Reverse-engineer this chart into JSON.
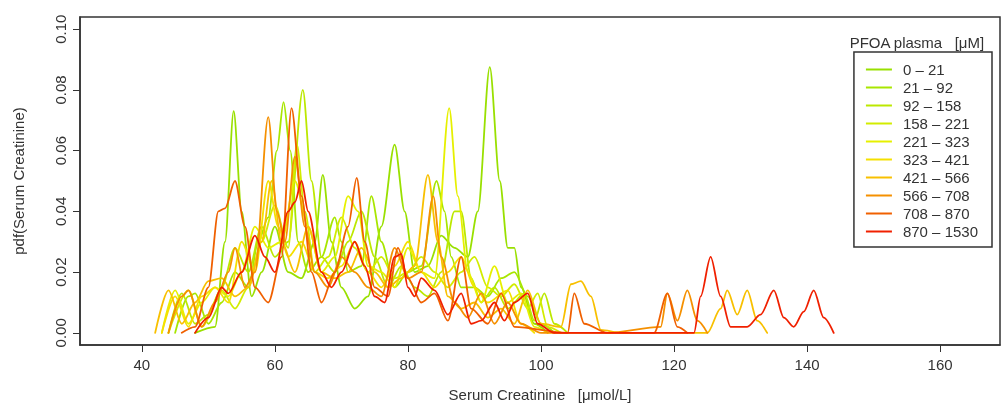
{
  "chart_data": {
    "type": "line",
    "xlabel": "Serum Creatinine   [μmol/L]",
    "ylabel": "pdf(Serum Creatinine)",
    "legend_title": "PFOA plasma   [μM]",
    "legend": "top right",
    "grid": false,
    "marker": "none",
    "line_style": "solid",
    "xlim": [
      30.7,
      169
    ],
    "xticks": [
      40,
      60,
      80,
      100,
      120,
      140,
      160
    ],
    "ylim": [
      -0.004,
      0.104
    ],
    "yticks": [
      {
        "value": 0,
        "label": "0.00"
      },
      {
        "value": 0.02,
        "label": "0.02"
      },
      {
        "value": 0.04,
        "label": "0.04"
      },
      {
        "value": 0.06,
        "label": "0.06"
      },
      {
        "value": 0.08,
        "label": "0.08"
      },
      {
        "value": 0.1,
        "label": "0.10"
      }
    ],
    "series": [
      {
        "name": "0 – 21",
        "color": "#99e000",
        "x": [
          48,
          51,
          52.5,
          53.8,
          55,
          56.5,
          58,
          60,
          62,
          64,
          66,
          67.2,
          68.5,
          70,
          72,
          74,
          76,
          78,
          79.5,
          81,
          83,
          85,
          87,
          89,
          90.5,
          92.3,
          93.8,
          95,
          96,
          97,
          99,
          101
        ],
        "values": [
          0,
          0.002,
          0.03,
          0.073,
          0.04,
          0.012,
          0.02,
          0.035,
          0.02,
          0.018,
          0.03,
          0.052,
          0.03,
          0.015,
          0.008,
          0.012,
          0.035,
          0.062,
          0.04,
          0.02,
          0.022,
          0.032,
          0.028,
          0.025,
          0.04,
          0.0875,
          0.05,
          0.028,
          0.028,
          0.015,
          0.003,
          0
        ]
      },
      {
        "name": "21 – 92",
        "color": "#a8e600",
        "x": [
          45,
          47,
          48,
          50,
          52,
          54,
          56,
          57.5,
          59,
          60.3,
          61.3,
          62.3,
          63.5,
          65,
          67,
          69,
          70,
          71,
          73,
          74.5,
          76,
          78,
          80,
          82,
          84.3,
          85.5,
          86.5,
          88,
          90,
          92,
          94,
          96,
          98,
          100,
          102
        ],
        "values": [
          0,
          0.012,
          0.013,
          0.003,
          0.01,
          0.02,
          0.015,
          0.03,
          0.038,
          0.06,
          0.076,
          0.06,
          0.03,
          0.02,
          0.025,
          0.038,
          0.03,
          0.02,
          0.022,
          0.045,
          0.03,
          0.015,
          0.02,
          0.022,
          0.05,
          0.04,
          0.025,
          0.015,
          0.015,
          0.012,
          0.018,
          0.02,
          0.012,
          0.003,
          0
        ]
      },
      {
        "name": "92 – 158",
        "color": "#bce800",
        "x": [
          44,
          46,
          48,
          50,
          52,
          54,
          56,
          58,
          60,
          62,
          64.2,
          65.5,
          67,
          69,
          71,
          73,
          75,
          77,
          79,
          81,
          83,
          85,
          87,
          88,
          89.5,
          91,
          93,
          95,
          97.5,
          99,
          100.5,
          102,
          104
        ],
        "values": [
          0,
          0.013,
          0.003,
          0.006,
          0.015,
          0.028,
          0.02,
          0.035,
          0.025,
          0.03,
          0.08,
          0.05,
          0.025,
          0.02,
          0.03,
          0.04,
          0.025,
          0.015,
          0.022,
          0.015,
          0.012,
          0.02,
          0.04,
          0.04,
          0.018,
          0.01,
          0.015,
          0.008,
          0.013,
          0.004,
          0.013,
          0.003,
          0
        ]
      },
      {
        "name": "158 – 221",
        "color": "#d2ec00",
        "x": [
          44,
          47,
          49,
          52,
          54,
          56,
          58,
          60,
          62,
          63.3,
          64.5,
          66,
          68,
          70,
          72,
          74,
          76,
          78,
          80,
          82,
          84,
          86,
          88,
          90,
          92,
          94,
          96,
          98,
          99.5,
          101,
          103
        ],
        "values": [
          0,
          0.014,
          0.002,
          0.014,
          0.008,
          0.015,
          0.03,
          0.042,
          0.028,
          0.062,
          0.04,
          0.02,
          0.025,
          0.038,
          0.028,
          0.02,
          0.025,
          0.018,
          0.02,
          0.025,
          0.02,
          0.015,
          0.02,
          0.025,
          0.015,
          0.012,
          0.016,
          0.008,
          0.013,
          0.002,
          0
        ]
      },
      {
        "name": "221 – 323",
        "color": "#e6f000",
        "x": [
          43,
          45,
          47,
          49,
          51,
          53,
          55,
          57,
          59,
          61,
          63,
          65,
          67,
          69,
          71,
          72.5,
          74,
          76,
          78,
          80,
          82,
          84,
          86.2,
          87.5,
          89,
          91,
          93,
          95,
          97,
          99,
          101
        ],
        "values": [
          0,
          0.014,
          0.003,
          0.01,
          0.015,
          0.012,
          0.02,
          0.035,
          0.028,
          0.03,
          0.05,
          0.035,
          0.02,
          0.025,
          0.045,
          0.04,
          0.022,
          0.02,
          0.015,
          0.028,
          0.02,
          0.018,
          0.074,
          0.045,
          0.02,
          0.01,
          0.022,
          0.01,
          0.013,
          0.002,
          0
        ]
      },
      {
        "name": "323 – 421",
        "color": "#f5e000",
        "x": [
          43,
          45,
          47,
          49,
          51,
          53,
          55,
          57,
          59,
          60.5,
          62,
          64,
          66,
          68,
          70,
          72,
          74,
          76,
          78,
          80,
          82,
          84,
          86,
          88,
          90,
          92,
          95,
          97,
          99
        ],
        "values": [
          0,
          0.012,
          0.002,
          0.012,
          0.015,
          0.01,
          0.03,
          0.02,
          0.05,
          0.035,
          0.025,
          0.03,
          0.02,
          0.018,
          0.022,
          0.03,
          0.02,
          0.015,
          0.022,
          0.03,
          0.02,
          0.015,
          0.02,
          0.025,
          0.015,
          0.01,
          0.014,
          0.003,
          0
        ]
      },
      {
        "name": "421 – 566",
        "color": "#f8c000",
        "x": [
          42,
          44,
          46,
          48,
          50,
          52,
          54,
          56,
          58,
          59.5,
          61,
          63,
          65,
          67,
          69,
          71,
          73,
          75,
          77,
          79,
          81,
          83,
          84.5,
          86,
          88,
          90,
          92,
          94,
          96,
          98,
          100,
          103,
          104.5,
          106,
          107.5,
          109,
          112,
          125,
          127,
          128,
          129.5,
          131,
          132.5,
          134
        ],
        "values": [
          0,
          0.014,
          0.003,
          0.01,
          0.017,
          0.018,
          0.012,
          0.015,
          0.03,
          0.05,
          0.03,
          0.02,
          0.035,
          0.02,
          0.018,
          0.02,
          0.028,
          0.02,
          0.015,
          0.018,
          0.022,
          0.052,
          0.03,
          0.012,
          0.008,
          0.01,
          0.005,
          0.008,
          0.003,
          0.014,
          0.003,
          0.002,
          0.016,
          0.017,
          0.012,
          0.001,
          0,
          0,
          0.008,
          0.014,
          0.006,
          0.014,
          0.004,
          0
        ]
      },
      {
        "name": "566 – 708",
        "color": "#f59000",
        "x": [
          44,
          46,
          47,
          49,
          51,
          53,
          54,
          55.5,
          57,
          59,
          60.3,
          61.5,
          63,
          64.5,
          66,
          68,
          70,
          72,
          74,
          76,
          78,
          80,
          82,
          83.8,
          85,
          87,
          89,
          91,
          93,
          95,
          97,
          100,
          110,
          118,
          119,
          120.5,
          122,
          123.5,
          125
        ],
        "values": [
          0,
          0.012,
          0.014,
          0.002,
          0.01,
          0.02,
          0.028,
          0.015,
          0.02,
          0.071,
          0.04,
          0.03,
          0.058,
          0.035,
          0.02,
          0.015,
          0.025,
          0.02,
          0.015,
          0.012,
          0.028,
          0.018,
          0.02,
          0.045,
          0.025,
          0.01,
          0.005,
          0.013,
          0.003,
          0.01,
          0.003,
          0,
          0,
          0.002,
          0.013,
          0.004,
          0.014,
          0.004,
          0
        ]
      },
      {
        "name": "708 – 870",
        "color": "#f06000",
        "x": [
          46,
          48,
          50,
          51.5,
          52.5,
          54,
          55.5,
          57,
          59,
          61,
          62.5,
          64,
          65.5,
          67,
          69,
          71,
          72.3,
          73.5,
          75,
          77,
          78.5,
          80,
          82,
          84,
          86,
          88,
          89.5,
          92,
          94,
          96,
          104,
          105,
          106.5,
          110,
          117,
          119,
          120.5,
          122
        ],
        "values": [
          0,
          0.002,
          0.015,
          0.04,
          0.041,
          0.05,
          0.035,
          0.015,
          0.01,
          0.025,
          0.074,
          0.045,
          0.02,
          0.01,
          0.02,
          0.035,
          0.051,
          0.03,
          0.015,
          0.012,
          0.028,
          0.018,
          0.01,
          0.013,
          0.004,
          0.025,
          0.008,
          0.003,
          0.013,
          0.002,
          0,
          0.013,
          0.003,
          0,
          0,
          0.013,
          0.002,
          0
        ]
      },
      {
        "name": "870 – 1530",
        "color": "#f02000",
        "x": [
          48,
          50,
          52,
          53,
          55,
          57,
          58.5,
          60,
          62,
          63,
          64,
          65,
          67,
          68.5,
          70,
          72,
          73.5,
          75,
          76.5,
          78,
          79,
          80,
          81,
          82,
          84,
          86,
          88,
          89.5,
          91,
          93,
          94.5,
          96,
          98,
          99.5,
          102,
          115,
          123,
          124,
          125.5,
          127,
          128.5,
          131,
          133,
          135,
          136.5,
          138,
          139.5,
          141,
          142.5,
          144
        ],
        "values": [
          0,
          0.005,
          0.015,
          0.013,
          0.02,
          0.032,
          0.025,
          0.02,
          0.04,
          0.043,
          0.05,
          0.04,
          0.02,
          0.015,
          0.02,
          0.03,
          0.022,
          0.012,
          0.01,
          0.025,
          0.026,
          0.015,
          0.012,
          0.018,
          0.014,
          0.006,
          0.013,
          0.003,
          0.004,
          0.01,
          0.004,
          0.01,
          0.013,
          0.003,
          0,
          0,
          0,
          0.012,
          0.025,
          0.012,
          0.002,
          0.002,
          0.006,
          0.014,
          0.005,
          0.002,
          0.007,
          0.014,
          0.005,
          0
        ]
      }
    ]
  }
}
